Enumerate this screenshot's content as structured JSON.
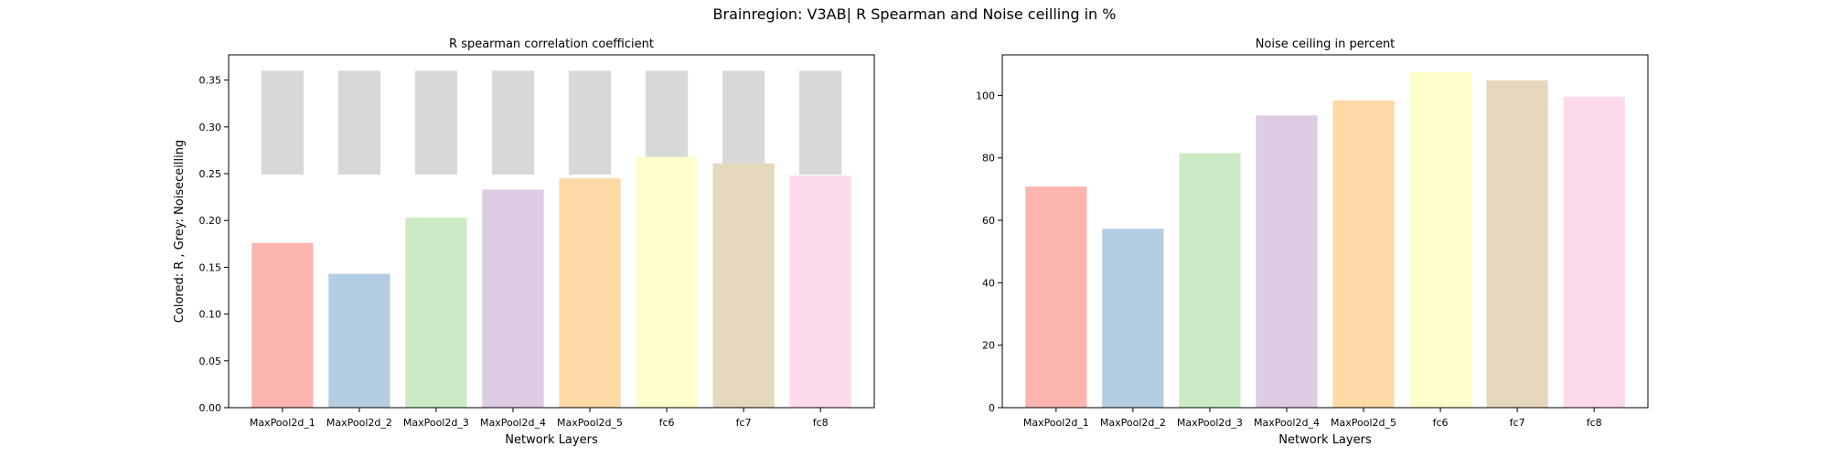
{
  "figure": {
    "title": "Brainregion: V3AB| R Spearman and Noise ceilling in %"
  },
  "chart_data": [
    {
      "type": "bar",
      "title": "R spearman correlation coefficient",
      "xlabel": "Network Layers",
      "ylabel": "Colored: R , Grey: Noiseceilling",
      "categories": [
        "MaxPool2d_1",
        "MaxPool2d_2",
        "MaxPool2d_3",
        "MaxPool2d_4",
        "MaxPool2d_5",
        "fc6",
        "fc7",
        "fc8"
      ],
      "ylim": [
        0,
        0.377
      ],
      "yticks": [
        0.0,
        0.05,
        0.1,
        0.15,
        0.2,
        0.25,
        0.3,
        0.35
      ],
      "ytick_labels": [
        "0.00",
        "0.05",
        "0.10",
        "0.15",
        "0.20",
        "0.25",
        "0.30",
        "0.35"
      ],
      "series": [
        {
          "values": [
            0.176,
            0.143,
            0.203,
            0.233,
            0.245,
            0.268,
            0.261,
            0.248
          ]
        }
      ],
      "noise_ceiling": {
        "lower": [
          0.249,
          0.249,
          0.249,
          0.249,
          0.249,
          0.249,
          0.249,
          0.249
        ],
        "upper": [
          0.36,
          0.36,
          0.36,
          0.36,
          0.36,
          0.36,
          0.36,
          0.36
        ],
        "color": "#d8d8d8"
      },
      "colors": [
        "#fbb4ae",
        "#b3cde3",
        "#ccebc5",
        "#decbe4",
        "#fed9a6",
        "#ffffcc",
        "#e5d8bd",
        "#fddaec"
      ],
      "grid": false
    },
    {
      "type": "bar",
      "title": "Noise ceiling in percent",
      "xlabel": "Network Layers",
      "ylabel": "",
      "categories": [
        "MaxPool2d_1",
        "MaxPool2d_2",
        "MaxPool2d_3",
        "MaxPool2d_4",
        "MaxPool2d_5",
        "fc6",
        "fc7",
        "fc8"
      ],
      "ylim": [
        0,
        113
      ],
      "yticks": [
        0,
        20,
        40,
        60,
        80,
        100
      ],
      "ytick_labels": [
        "0",
        "20",
        "40",
        "60",
        "80",
        "100"
      ],
      "series": [
        {
          "values": [
            70.8,
            57.3,
            81.5,
            93.6,
            98.4,
            107.5,
            104.8,
            99.6
          ]
        }
      ],
      "colors": [
        "#fbb4ae",
        "#b3cde3",
        "#ccebc5",
        "#decbe4",
        "#fed9a6",
        "#ffffcc",
        "#e5d8bd",
        "#fddaec"
      ],
      "grid": false
    }
  ]
}
